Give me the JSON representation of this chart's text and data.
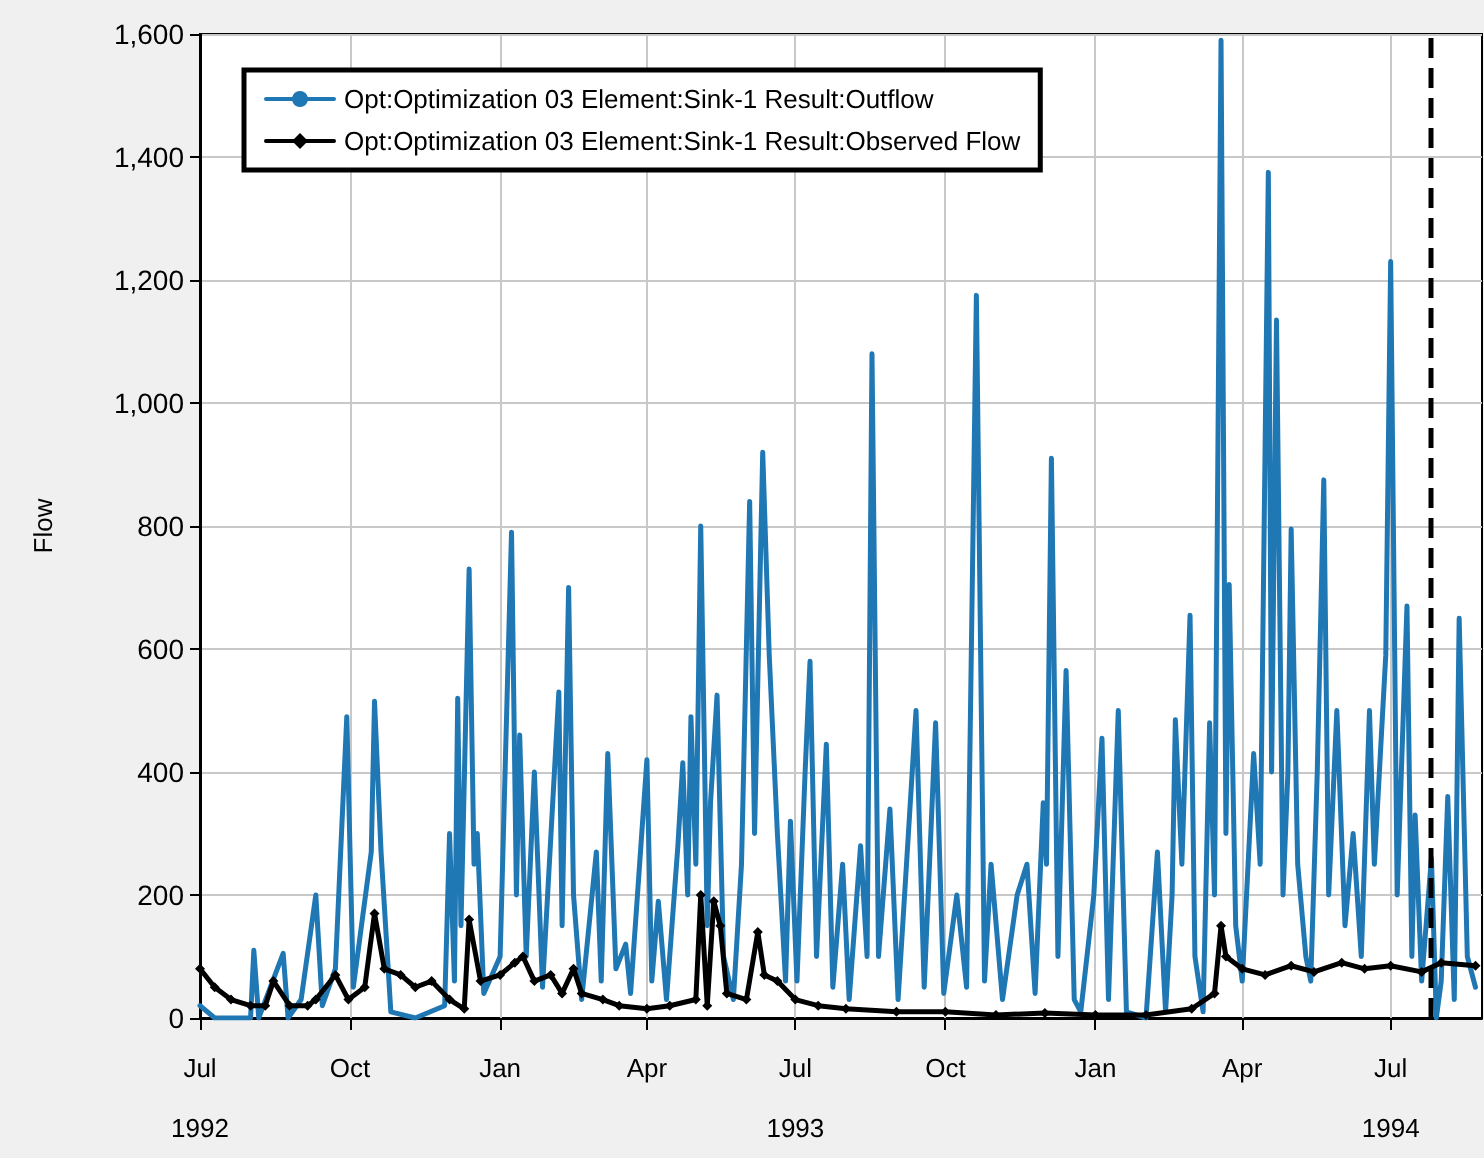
{
  "chart_data": {
    "type": "line",
    "ylabel": "Flow",
    "legend": "top left",
    "grid": true,
    "line_style": "solid",
    "xlim": [
      "1992-07-01",
      "1994-08-26"
    ],
    "xticks": [
      {
        "value": "1992-07-01",
        "label": "Jul\n1992"
      },
      {
        "value": "1992-10-01",
        "label": "Oct"
      },
      {
        "value": "1993-01-01",
        "label": "Jan"
      },
      {
        "value": "1993-04-01",
        "label": "Apr"
      },
      {
        "value": "1993-07-01",
        "label": "Jul\n1993"
      },
      {
        "value": "1993-10-01",
        "label": "Oct"
      },
      {
        "value": "1994-01-01",
        "label": "Jan"
      },
      {
        "value": "1994-04-01",
        "label": "Apr"
      },
      {
        "value": "1994-07-01",
        "label": "Jul\n1994"
      }
    ],
    "ylim": [
      0,
      1600
    ],
    "yticks": [
      0,
      200,
      400,
      600,
      800,
      {
        "value": 1000,
        "label": "1,000"
      },
      {
        "value": 1200,
        "label": "1,200"
      },
      {
        "value": 1400,
        "label": "1,400"
      },
      {
        "value": 1600,
        "label": "1,600"
      }
    ],
    "ref_lines": [
      {
        "axis": "x",
        "value": "1994-07-25",
        "color": "#000000",
        "line_style": "dashed"
      }
    ],
    "series": [
      {
        "name": "Opt:Optimization 03 Element:Sink-1 Result:Outflow",
        "color": "#1f77b4",
        "marker": "none",
        "x": [
          "1992-07-01",
          "1992-07-10",
          "1992-08-01",
          "1992-08-03",
          "1992-08-06",
          "1992-08-21",
          "1992-08-24",
          "1992-09-01",
          "1992-09-10",
          "1992-09-14",
          "1992-09-22",
          "1992-09-29",
          "1992-10-03",
          "1992-10-14",
          "1992-10-16",
          "1992-10-20",
          "1992-10-26",
          "1992-11-10",
          "1992-11-28",
          "1992-12-01",
          "1992-12-04",
          "1992-12-06",
          "1992-12-08",
          "1992-12-13",
          "1992-12-16",
          "1992-12-18",
          "1992-12-22",
          "1993-01-01",
          "1993-01-08",
          "1993-01-11",
          "1993-01-13",
          "1993-01-17",
          "1993-01-22",
          "1993-01-27",
          "1993-02-06",
          "1993-02-08",
          "1993-02-12",
          "1993-02-15",
          "1993-02-20",
          "1993-03-01",
          "1993-03-04",
          "1993-03-08",
          "1993-03-13",
          "1993-03-19",
          "1993-03-22",
          "1993-04-01",
          "1993-04-04",
          "1993-04-08",
          "1993-04-13",
          "1993-04-20",
          "1993-04-23",
          "1993-04-26",
          "1993-04-28",
          "1993-05-01",
          "1993-05-04",
          "1993-05-08",
          "1993-05-10",
          "1993-05-14",
          "1993-05-18",
          "1993-05-24",
          "1993-05-29",
          "1993-06-03",
          "1993-06-06",
          "1993-06-11",
          "1993-06-15",
          "1993-06-20",
          "1993-06-25",
          "1993-06-28",
          "1993-07-02",
          "1993-07-07",
          "1993-07-10",
          "1993-07-14",
          "1993-07-20",
          "1993-07-24",
          "1993-07-30",
          "1993-08-03",
          "1993-08-10",
          "1993-08-14",
          "1993-08-17",
          "1993-08-21",
          "1993-08-28",
          "1993-09-02",
          "1993-09-13",
          "1993-09-18",
          "1993-09-25",
          "1993-09-30",
          "1993-10-08",
          "1993-10-14",
          "1993-10-20",
          "1993-10-25",
          "1993-10-29",
          "1993-11-05",
          "1993-11-14",
          "1993-11-20",
          "1993-11-25",
          "1993-11-30",
          "1993-12-02",
          "1993-12-05",
          "1993-12-09",
          "1993-12-14",
          "1993-12-19",
          "1993-12-23",
          "1993-12-31",
          "1994-01-05",
          "1994-01-09",
          "1994-01-15",
          "1994-01-20",
          "1994-02-01",
          "1994-02-08",
          "1994-02-13",
          "1994-02-17",
          "1994-02-19",
          "1994-02-23",
          "1994-02-28",
          "1994-03-03",
          "1994-03-08",
          "1994-03-12",
          "1994-03-15",
          "1994-03-19",
          "1994-03-22",
          "1994-03-24",
          "1994-03-28",
          "1994-04-01",
          "1994-04-08",
          "1994-04-12",
          "1994-04-17",
          "1994-04-19",
          "1994-04-22",
          "1994-04-26",
          "1994-04-29",
          "1994-05-01",
          "1994-05-05",
          "1994-05-10",
          "1994-05-13",
          "1994-05-17",
          "1994-05-21",
          "1994-05-24",
          "1994-05-29",
          "1994-06-03",
          "1994-06-08",
          "1994-06-13",
          "1994-06-18",
          "1994-06-21",
          "1994-06-28",
          "1994-07-01",
          "1994-07-05",
          "1994-07-11",
          "1994-07-14",
          "1994-07-16",
          "1994-07-20",
          "1994-07-26",
          "1994-07-29",
          "1994-08-01",
          "1994-08-05",
          "1994-08-09",
          "1994-08-12",
          "1994-08-17",
          "1994-08-22"
        ],
        "values": [
          20,
          0,
          0,
          110,
          0,
          105,
          0,
          30,
          200,
          20,
          80,
          490,
          50,
          270,
          515,
          270,
          10,
          0,
          20,
          300,
          60,
          520,
          150,
          730,
          250,
          300,
          40,
          100,
          790,
          200,
          460,
          100,
          400,
          50,
          530,
          150,
          700,
          200,
          30,
          270,
          60,
          430,
          80,
          120,
          40,
          420,
          60,
          190,
          30,
          280,
          415,
          200,
          490,
          250,
          800,
          150,
          350,
          525,
          100,
          30,
          250,
          840,
          300,
          920,
          590,
          300,
          60,
          320,
          60,
          400,
          580,
          100,
          445,
          50,
          250,
          30,
          280,
          100,
          1080,
          100,
          340,
          30,
          500,
          50,
          480,
          40,
          200,
          50,
          1175,
          60,
          250,
          30,
          200,
          250,
          40,
          350,
          250,
          910,
          100,
          565,
          30,
          10,
          200,
          455,
          30,
          500,
          10,
          0,
          270,
          10,
          200,
          485,
          250,
          655,
          100,
          10,
          480,
          200,
          1590,
          300,
          705,
          150,
          60,
          430,
          250,
          1375,
          400,
          1135,
          200,
          400,
          795,
          250,
          100,
          60,
          400,
          875,
          200,
          500,
          150,
          300,
          100,
          500,
          250,
          590,
          1230,
          200,
          670,
          100,
          330,
          60,
          260,
          0,
          60,
          360,
          30,
          650,
          100,
          50
        ]
      },
      {
        "name": "Opt:Optimization 03 Element:Sink-1 Result:Observed Flow",
        "color": "#000000",
        "marker": "diamond",
        "x": [
          "1992-07-01",
          "1992-07-10",
          "1992-07-20",
          "1992-08-01",
          "1992-08-10",
          "1992-08-15",
          "1992-08-25",
          "1992-09-05",
          "1992-09-10",
          "1992-09-22",
          "1992-09-30",
          "1992-10-10",
          "1992-10-16",
          "1992-10-22",
          "1992-11-01",
          "1992-11-10",
          "1992-11-20",
          "1992-12-01",
          "1992-12-10",
          "1992-12-13",
          "1992-12-20",
          "1993-01-01",
          "1993-01-10",
          "1993-01-15",
          "1993-01-22",
          "1993-02-01",
          "1993-02-08",
          "1993-02-15",
          "1993-02-20",
          "1993-03-05",
          "1993-03-15",
          "1993-04-01",
          "1993-04-15",
          "1993-05-01",
          "1993-05-04",
          "1993-05-08",
          "1993-05-12",
          "1993-05-16",
          "1993-05-20",
          "1993-06-01",
          "1993-06-08",
          "1993-06-12",
          "1993-06-20",
          "1993-07-01",
          "1993-07-15",
          "1993-08-01",
          "1993-09-01",
          "1993-10-01",
          "1993-11-01",
          "1993-12-01",
          "1994-01-01",
          "1994-02-01",
          "1994-03-01",
          "1994-03-15",
          "1994-03-19",
          "1994-03-22",
          "1994-04-01",
          "1994-04-15",
          "1994-05-01",
          "1994-05-15",
          "1994-06-01",
          "1994-06-15",
          "1994-07-01",
          "1994-07-20",
          "1994-08-01",
          "1994-08-22"
        ],
        "values": [
          80,
          50,
          30,
          20,
          20,
          60,
          20,
          20,
          30,
          70,
          30,
          50,
          170,
          80,
          70,
          50,
          60,
          30,
          15,
          160,
          60,
          70,
          90,
          100,
          60,
          70,
          40,
          80,
          40,
          30,
          20,
          15,
          20,
          30,
          200,
          20,
          190,
          150,
          40,
          30,
          140,
          70,
          60,
          30,
          20,
          15,
          10,
          10,
          5,
          8,
          5,
          5,
          15,
          40,
          150,
          100,
          80,
          70,
          85,
          75,
          90,
          80,
          85,
          75,
          90,
          85
        ]
      }
    ]
  }
}
